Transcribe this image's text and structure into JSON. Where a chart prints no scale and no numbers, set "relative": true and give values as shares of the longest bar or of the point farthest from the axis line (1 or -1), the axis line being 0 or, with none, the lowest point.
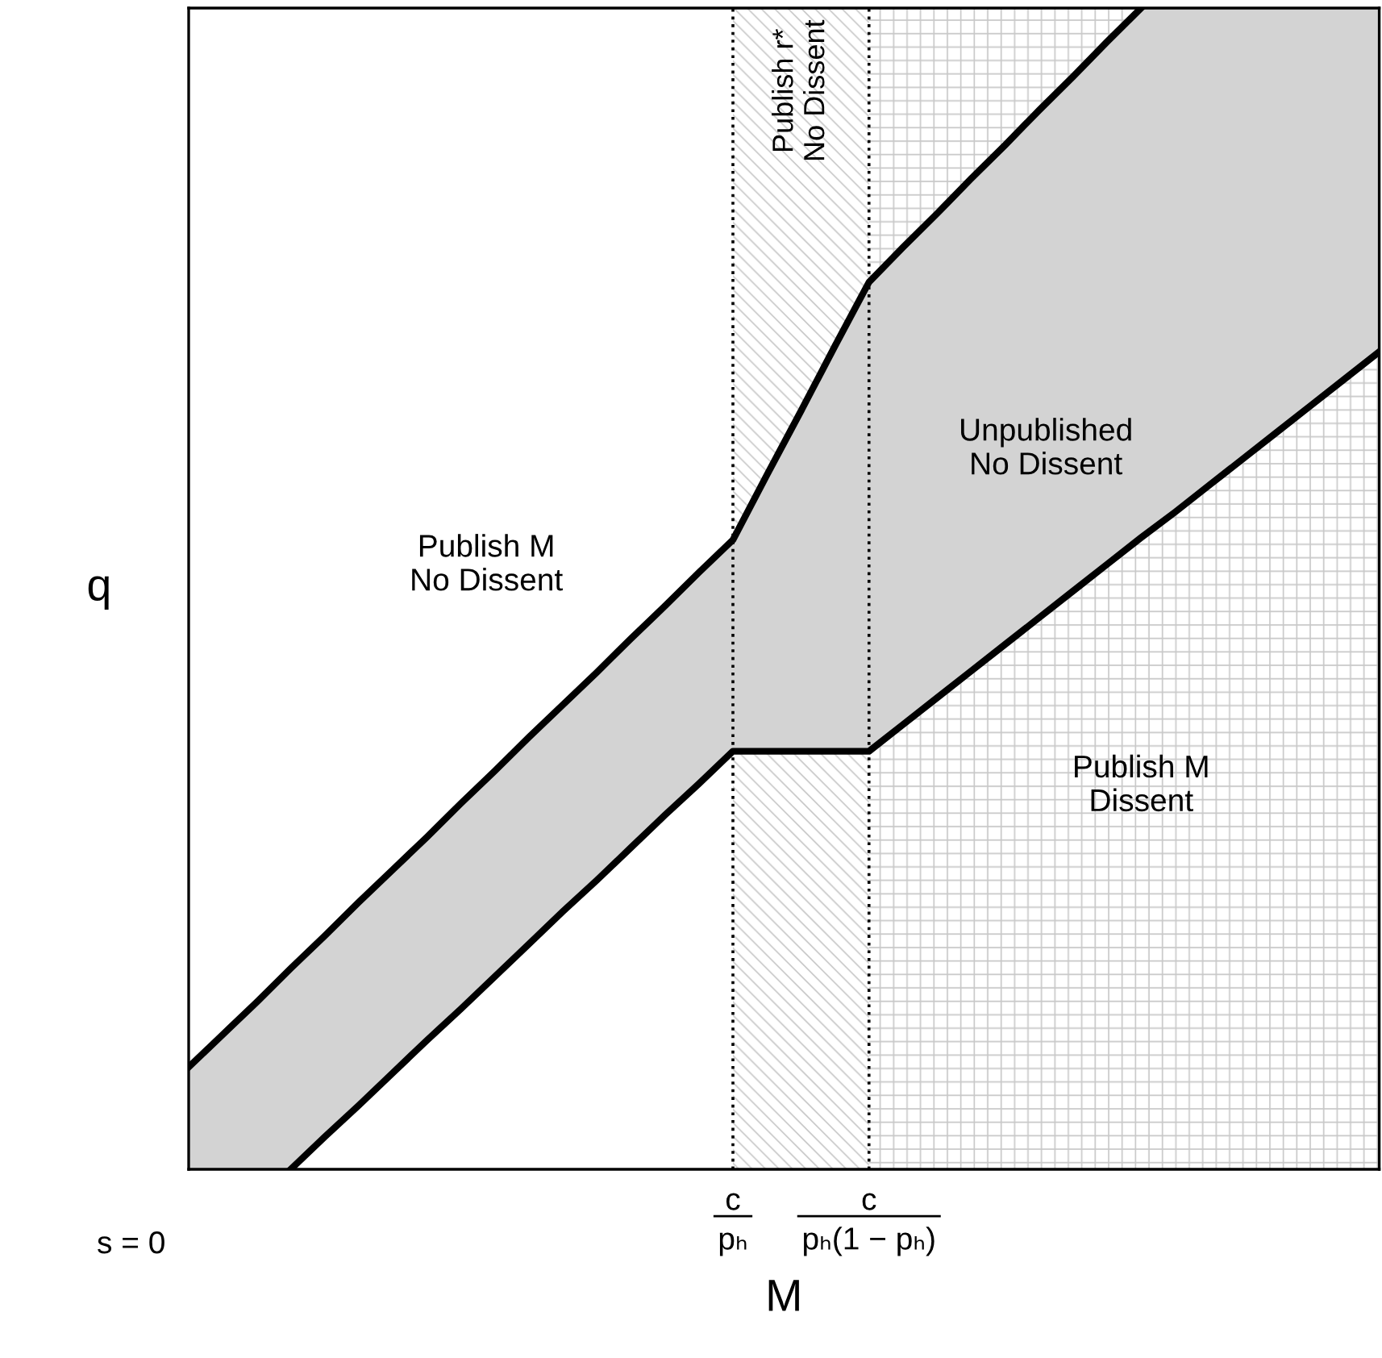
{
  "chart_data": {
    "type": "line",
    "relative": true,
    "xlabel": "M",
    "ylabel": "q",
    "categories": [
      null,
      null,
      null,
      null,
      null,
      null,
      null,
      null,
      null,
      null,
      null,
      null,
      null,
      null,
      null,
      null,
      "c\npₕ",
      null,
      null,
      null,
      "c\npₕ(1 − pₕ)",
      null,
      null,
      null,
      null,
      null,
      null,
      null,
      null,
      null,
      null,
      null,
      null,
      null,
      null,
      null
    ],
    "series": [
      {
        "color": "#000000",
        "values": [
          0.088,
          0.116,
          0.144,
          0.173,
          0.201,
          0.23,
          0.258,
          0.286,
          0.315,
          0.343,
          0.372,
          0.4,
          0.428,
          0.457,
          0.485,
          0.514,
          0.542,
          0.598,
          0.653,
          0.709,
          0.764,
          0.794,
          0.823,
          0.853,
          0.882,
          0.912,
          0.941,
          0.971,
          1.0,
          null,
          null,
          null,
          null,
          null,
          null,
          null
        ],
        "lower": [
          0,
          0,
          0,
          0,
          0.028,
          0.055,
          0.083,
          0.111,
          0.138,
          0.166,
          0.194,
          0.222,
          0.249,
          0.277,
          0.305,
          0.332,
          0.36,
          0.36,
          0.36,
          0.36,
          0.36,
          0.383,
          0.406,
          0.429,
          0.452,
          0.475,
          0.498,
          0.521,
          0.544,
          0.566,
          0.589,
          0.612,
          0.635,
          0.658,
          0.681,
          0.704
        ],
        "upper": [
          0.088,
          0.116,
          0.144,
          0.173,
          0.201,
          0.23,
          0.258,
          0.286,
          0.315,
          0.343,
          0.372,
          0.4,
          0.428,
          0.457,
          0.485,
          0.514,
          0.542,
          0.598,
          0.653,
          0.709,
          0.764,
          0.794,
          0.823,
          0.853,
          0.882,
          0.912,
          0.941,
          0.971,
          1.0,
          1.0,
          1.0,
          1.0,
          1.0,
          1.0,
          1.0,
          1.0
        ]
      },
      {
        "color": "#000000",
        "values": [
          null,
          null,
          null,
          0,
          0.028,
          0.055,
          0.083,
          0.111,
          0.138,
          0.166,
          0.194,
          0.222,
          0.249,
          0.277,
          0.305,
          0.332,
          0.36,
          0.36,
          0.36,
          0.36,
          0.36,
          0.383,
          0.406,
          0.429,
          0.452,
          0.475,
          0.498,
          0.521,
          0.544,
          0.566,
          0.589,
          0.612,
          0.635,
          0.658,
          0.681,
          0.704
        ]
      }
    ],
    "bands": [
      {
        "axis": "x",
        "from": "c\npₕ",
        "to": "c\npₕ(1 − pₕ)",
        "label": "Publish r*\nNo Dissent",
        "color": "#c8c8c8"
      }
    ],
    "ref_lines": [
      {
        "axis": "x",
        "value": "c\npₕ",
        "color": "#000000",
        "line_style": "dotted"
      },
      {
        "axis": "x",
        "value": "c\npₕ(1 − pₕ)",
        "color": "#000000",
        "line_style": "dotted"
      }
    ],
    "annotations": [
      "Publish M\nNo Dissent",
      "Unpublished\nNo Dissent",
      "Publish M\nDissent",
      "s = 0"
    ],
    "grid": false,
    "legend": false,
    "line_style": "solid",
    "marker": "none"
  }
}
